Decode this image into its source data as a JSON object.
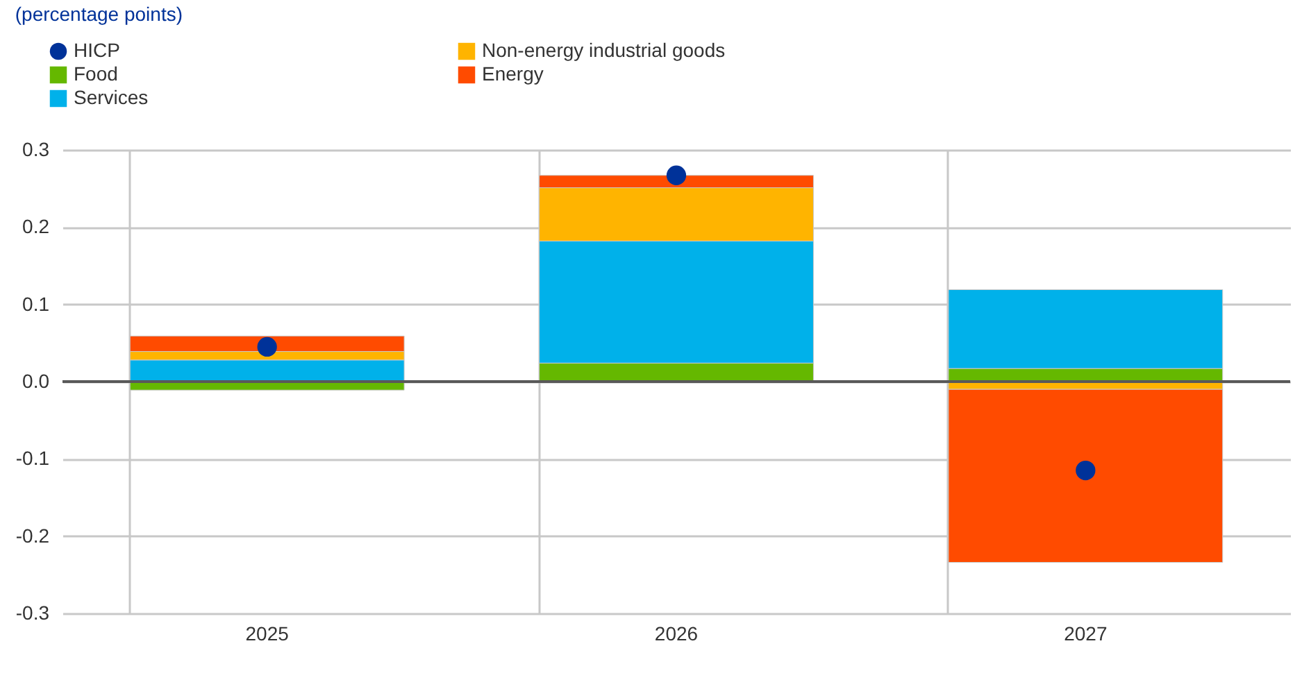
{
  "chart_data": {
    "type": "bar",
    "title": "(percentage points)",
    "categories": [
      "2025",
      "2026",
      "2027"
    ],
    "stacked": true,
    "series": [
      {
        "name": "HICP",
        "type": "scatter",
        "color": "#003299",
        "values": [
          0.045,
          0.267,
          -0.115
        ]
      },
      {
        "name": "Food",
        "color": "#65b800",
        "values": [
          -0.011,
          0.024,
          0.017
        ]
      },
      {
        "name": "Services",
        "color": "#00b1ea",
        "values": [
          0.028,
          0.158,
          0.102
        ]
      },
      {
        "name": "Non-energy industrial goods",
        "color": "#ffb400",
        "values": [
          0.011,
          0.069,
          -0.01
        ]
      },
      {
        "name": "Energy",
        "color": "#ff4b00",
        "values": [
          0.02,
          0.016,
          -0.224
        ]
      }
    ],
    "ylim": [
      -0.3,
      0.3
    ],
    "yticks": [
      -0.3,
      -0.2,
      -0.1,
      {
        "value": 0,
        "label": "0.0"
      },
      0.1,
      0.2,
      0.3
    ],
    "ref_lines": [
      {
        "axis": "y",
        "value": 0,
        "color": "#595959"
      }
    ],
    "grid": true,
    "legend": "top left",
    "marker": "circle"
  }
}
